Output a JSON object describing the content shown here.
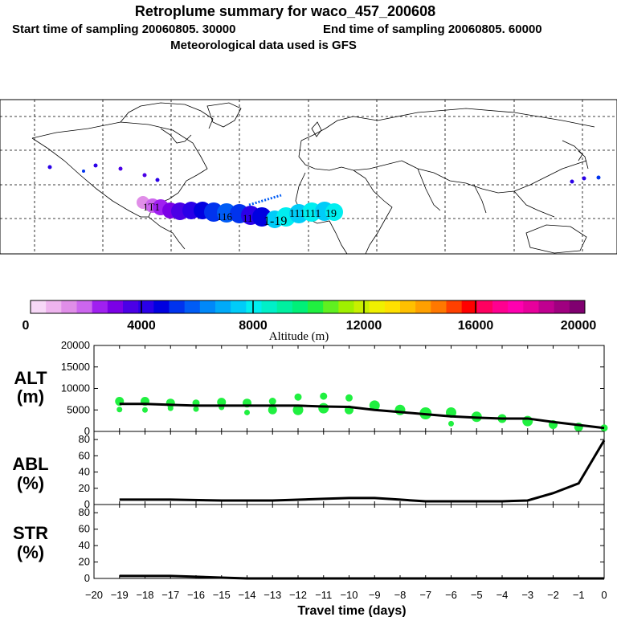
{
  "title": {
    "line1": "Retroplume summary for waco_457_200608",
    "line2_start": "Start time of sampling 20060805. 30000",
    "line2_end": "End time of sampling 20060805. 60000",
    "line3": "Meteorological data used is GFS"
  },
  "colorbar": {
    "label": "Altitude (m)",
    "ticks": [
      "0",
      "4000",
      "8000",
      "12000",
      "16000",
      "20000"
    ],
    "colors": [
      "#f7d8f7",
      "#eeb4ee",
      "#e08ee8",
      "#cc66ee",
      "#a020f0",
      "#7b00e6",
      "#4b00e6",
      "#2a00e8",
      "#0000e0",
      "#0033ee",
      "#005cf5",
      "#0088f8",
      "#00aaf8",
      "#00ccf8",
      "#00eef0",
      "#00f0c8",
      "#00f0a0",
      "#00f078",
      "#20f040",
      "#60f020",
      "#a0f000",
      "#c8f000",
      "#f0f000",
      "#ffe000",
      "#ffc000",
      "#ffa000",
      "#ff7800",
      "#ff4000",
      "#ff0000",
      "#ff0060",
      "#ff0090",
      "#ff00b0",
      "#e8009c",
      "#c00090",
      "#a00080",
      "#800070"
    ]
  },
  "chart_data": [
    {
      "type": "scatter",
      "ylabel_top": "ALT",
      "ylabel_unit": "(m)",
      "ylim": [
        0,
        20000
      ],
      "yticks": [
        "20000",
        "15000",
        "10000",
        "5000",
        "0"
      ],
      "xlim": [
        -20,
        0
      ],
      "mean_line": {
        "x": [
          -19,
          -18,
          -17,
          -16,
          -15,
          -14,
          -13,
          -12,
          -11,
          -10,
          -9,
          -8,
          -7,
          -6,
          -5,
          -4,
          -3,
          -2,
          -1,
          0
        ],
        "y": [
          6400,
          6400,
          6200,
          6000,
          6000,
          6000,
          6000,
          6000,
          5800,
          5700,
          5000,
          4500,
          4000,
          3500,
          3200,
          3000,
          3000,
          2200,
          1500,
          800
        ]
      },
      "points": [
        {
          "x": -19,
          "y": 7000,
          "s": 4
        },
        {
          "x": -19,
          "y": 5100,
          "s": 2
        },
        {
          "x": -18,
          "y": 7000,
          "s": 4
        },
        {
          "x": -18,
          "y": 5000,
          "s": 2
        },
        {
          "x": -17,
          "y": 6600,
          "s": 4
        },
        {
          "x": -17,
          "y": 5400,
          "s": 2
        },
        {
          "x": -16,
          "y": 6600,
          "s": 3
        },
        {
          "x": -16,
          "y": 5200,
          "s": 2
        },
        {
          "x": -15,
          "y": 6800,
          "s": 4
        },
        {
          "x": -15,
          "y": 5600,
          "s": 2
        },
        {
          "x": -14,
          "y": 6600,
          "s": 4
        },
        {
          "x": -14,
          "y": 4400,
          "s": 2
        },
        {
          "x": -13,
          "y": 7000,
          "s": 3
        },
        {
          "x": -13,
          "y": 5000,
          "s": 4
        },
        {
          "x": -12,
          "y": 8000,
          "s": 3
        },
        {
          "x": -12,
          "y": 5000,
          "s": 5
        },
        {
          "x": -11,
          "y": 8200,
          "s": 3
        },
        {
          "x": -11,
          "y": 5400,
          "s": 5
        },
        {
          "x": -10,
          "y": 7800,
          "s": 3
        },
        {
          "x": -10,
          "y": 5000,
          "s": 4
        },
        {
          "x": -9,
          "y": 6000,
          "s": 5
        },
        {
          "x": -8,
          "y": 5000,
          "s": 5
        },
        {
          "x": -7,
          "y": 4200,
          "s": 6
        },
        {
          "x": -6,
          "y": 4400,
          "s": 5
        },
        {
          "x": -6,
          "y": 1800,
          "s": 2
        },
        {
          "x": -5,
          "y": 3400,
          "s": 5
        },
        {
          "x": -4,
          "y": 3000,
          "s": 4
        },
        {
          "x": -3,
          "y": 2400,
          "s": 5
        },
        {
          "x": -2,
          "y": 1600,
          "s": 4
        },
        {
          "x": -1,
          "y": 1000,
          "s": 4
        },
        {
          "x": 0,
          "y": 800,
          "s": 3
        }
      ]
    },
    {
      "type": "line",
      "ylabel_top": "ABL",
      "ylabel_unit": "(%)",
      "ylim": [
        0,
        90
      ],
      "yticks": [
        "80",
        "60",
        "40",
        "20",
        "0"
      ],
      "x": [
        -19,
        -17,
        -15,
        -13,
        -11,
        -10,
        -9,
        -8,
        -7,
        -6,
        -5,
        -4,
        -3,
        -2,
        -1,
        0
      ],
      "y": [
        6,
        6,
        5,
        5,
        7,
        8,
        8,
        6,
        4,
        4,
        4,
        4,
        5,
        14,
        26,
        79
      ]
    },
    {
      "type": "line",
      "ylabel_top": "STR",
      "ylabel_unit": "(%)",
      "ylim": [
        0,
        90
      ],
      "yticks": [
        "80",
        "60",
        "40",
        "20",
        "0"
      ],
      "x": [
        -19,
        -17,
        -15,
        -14,
        0
      ],
      "y": [
        3,
        3,
        1,
        0,
        0
      ]
    }
  ],
  "xaxis": {
    "label": "Travel time (days)",
    "ticks": [
      "−20",
      "−19",
      "−18",
      "−17",
      "−16",
      "−15",
      "−14",
      "−13",
      "−12",
      "−11",
      "−10",
      "−9",
      "−8",
      "−7",
      "−6",
      "−5",
      "−4",
      "−3",
      "−2",
      "−1",
      "0"
    ]
  },
  "map": {
    "plume_labels": [
      "1T1",
      "116",
      "11",
      "1-19",
      "111111",
      "19"
    ]
  }
}
